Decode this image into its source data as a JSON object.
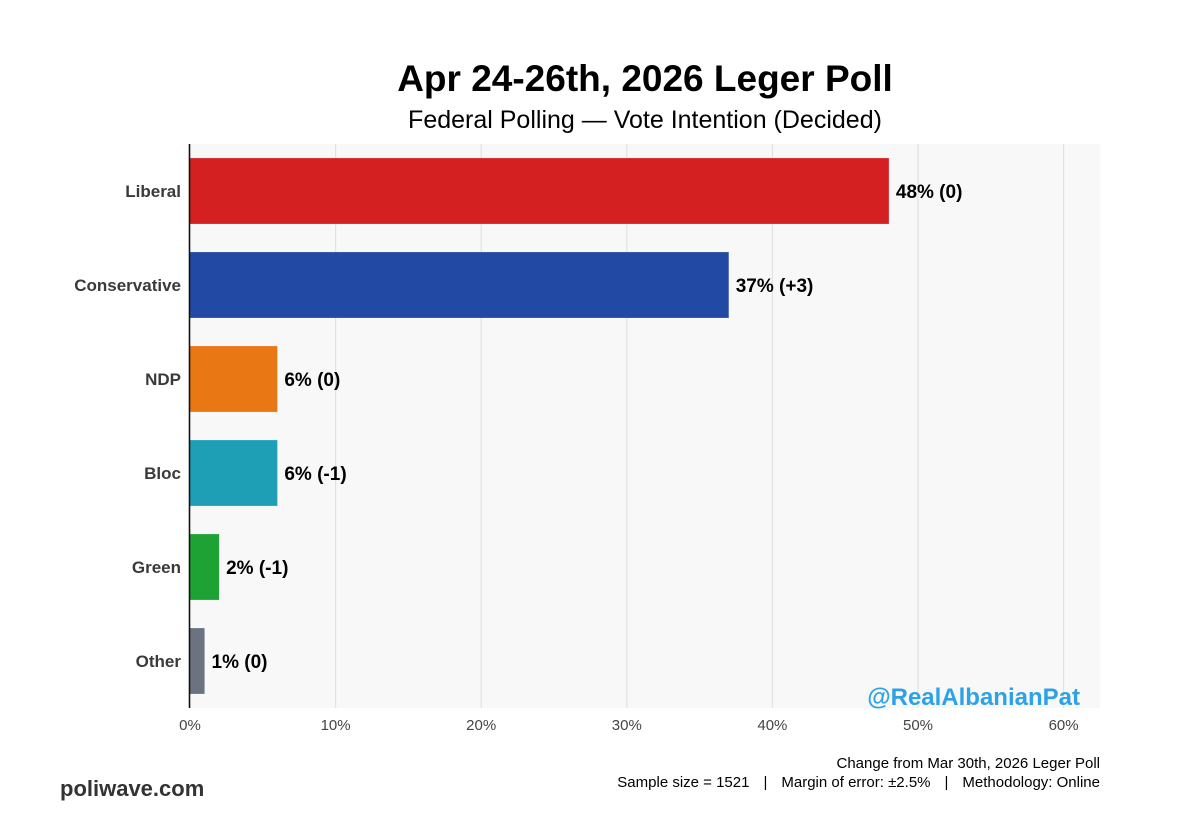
{
  "title": "Apr 24-26th, 2026 Leger Poll",
  "subtitle": "Federal Polling — Vote Intention (Decided)",
  "watermark": "@RealAlbanianPat",
  "brand": "poliwave.com",
  "footer": {
    "change_note": "Change from Mar 30th, 2026 Leger Poll",
    "sample": "Sample size = 1521",
    "margin": "Margin of error: ±2.5%",
    "method": "Methodology: Online",
    "separator": "|"
  },
  "chart_data": {
    "type": "bar",
    "orientation": "horizontal",
    "categories": [
      "Liberal",
      "Conservative",
      "NDP",
      "Bloc",
      "Green",
      "Other"
    ],
    "values": [
      48,
      37,
      6,
      6,
      2,
      1
    ],
    "changes": [
      "0",
      "+3",
      "0",
      "-1",
      "-1",
      "0"
    ],
    "data_labels": [
      "48% (0)",
      "37% (+3)",
      "6% (0)",
      "6% (-1)",
      "2% (-1)",
      "1% (0)"
    ],
    "colors": [
      "#d42020",
      "#224aa5",
      "#e97714",
      "#1e9fb5",
      "#1ea233",
      "#6c7380"
    ],
    "xlim": [
      0,
      62.5
    ],
    "xticks": [
      0,
      10,
      20,
      30,
      40,
      50,
      60
    ],
    "xtick_labels": [
      "0%",
      "10%",
      "20%",
      "30%",
      "40%",
      "50%",
      "60%"
    ],
    "grid": true,
    "panel_background": "#f8f8f8",
    "gridline_color": "#e2e2e2"
  }
}
